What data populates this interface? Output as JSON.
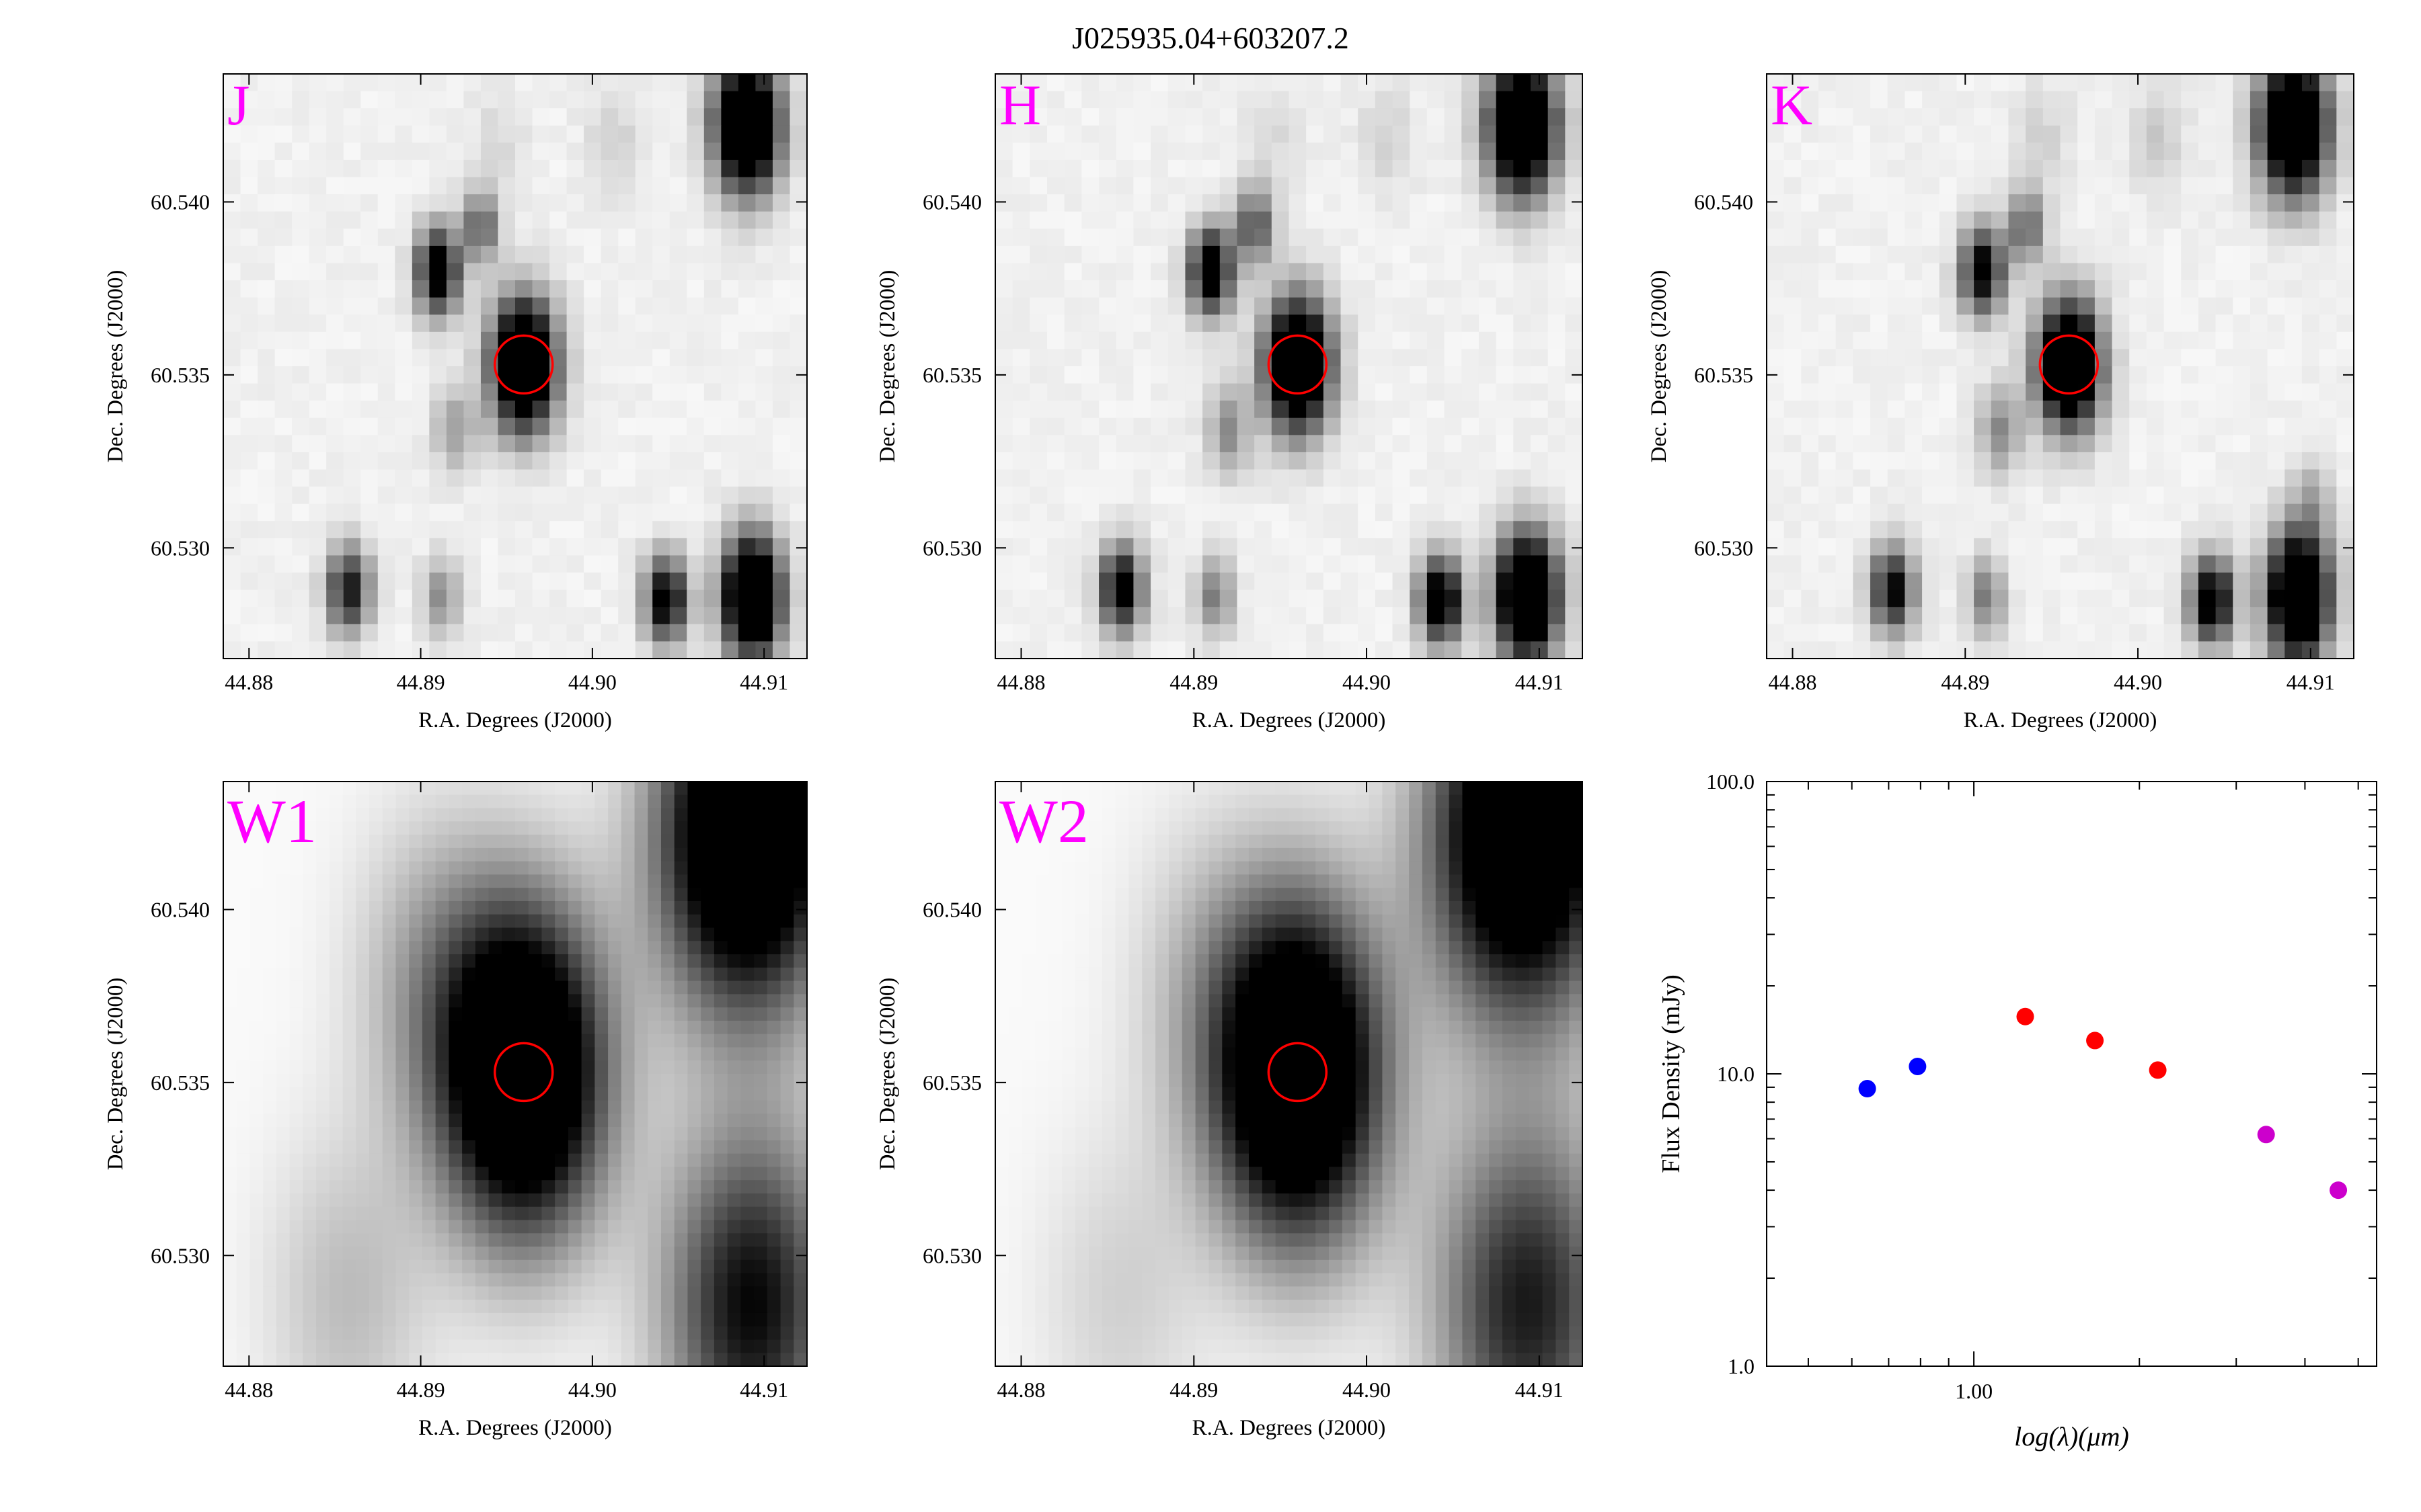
{
  "title": "J025935.04+603207.2",
  "colors": {
    "band_label": "#ff00ff",
    "aperture": "#ff0000",
    "sed_blue": "#0000ff",
    "sed_red": "#ff0000",
    "sed_magenta": "#cc00cc"
  },
  "chart_data": [
    {
      "type": "heatmap",
      "band": "J",
      "xlabel": "R.A. Degrees (J2000)",
      "ylabel": "Dec. Degrees (J2000)",
      "xlim": [
        44.8785,
        44.9125
      ],
      "ylim": [
        60.5268,
        60.5437
      ],
      "xticks": [
        "44.88",
        "44.89",
        "44.90",
        "44.91"
      ],
      "yticks": [
        "60.530",
        "60.535",
        "60.540"
      ],
      "target": {
        "ra": 44.896,
        "dec": 60.5353
      },
      "sources": [
        {
          "ra": 44.909,
          "dec": 60.5422,
          "level": 1.0,
          "size": 1.2
        },
        {
          "ra": 44.896,
          "dec": 60.5353,
          "level": 1.0,
          "size": 1.2
        },
        {
          "ra": 44.891,
          "dec": 60.538,
          "level": 0.7,
          "size": 0.8
        },
        {
          "ra": 44.8935,
          "dec": 60.5393,
          "level": 0.35,
          "size": 0.7
        },
        {
          "ra": 44.892,
          "dec": 60.5334,
          "level": 0.2,
          "size": 0.8
        },
        {
          "ra": 44.8858,
          "dec": 60.5288,
          "level": 0.55,
          "size": 0.8
        },
        {
          "ra": 44.8912,
          "dec": 60.5286,
          "level": 0.25,
          "size": 0.7
        },
        {
          "ra": 44.9043,
          "dec": 60.5285,
          "level": 0.65,
          "size": 0.8
        },
        {
          "ra": 44.9093,
          "dec": 60.5286,
          "level": 1.0,
          "size": 1.1
        },
        {
          "ra": 44.9012,
          "dec": 60.5418,
          "level": 0.08,
          "size": 1.0
        },
        {
          "ra": 44.8945,
          "dec": 60.5418,
          "level": 0.06,
          "size": 1.0
        }
      ]
    },
    {
      "type": "heatmap",
      "band": "H",
      "xlabel": "R.A. Degrees (J2000)",
      "ylabel": "Dec. Degrees (J2000)",
      "xlim": [
        44.8785,
        44.9125
      ],
      "ylim": [
        60.5268,
        60.5437
      ],
      "xticks": [
        "44.88",
        "44.89",
        "44.90",
        "44.91"
      ],
      "yticks": [
        "60.530",
        "60.535",
        "60.540"
      ],
      "target": {
        "ra": 44.896,
        "dec": 60.5353
      },
      "sources": [
        {
          "ra": 44.909,
          "dec": 60.5422,
          "level": 1.0,
          "size": 1.25
        },
        {
          "ra": 44.896,
          "dec": 60.5353,
          "level": 1.0,
          "size": 1.2
        },
        {
          "ra": 44.891,
          "dec": 60.538,
          "level": 0.7,
          "size": 0.8
        },
        {
          "ra": 44.8935,
          "dec": 60.5393,
          "level": 0.4,
          "size": 0.7
        },
        {
          "ra": 44.892,
          "dec": 60.5334,
          "level": 0.25,
          "size": 0.8
        },
        {
          "ra": 44.8858,
          "dec": 60.5288,
          "level": 0.65,
          "size": 0.8
        },
        {
          "ra": 44.8912,
          "dec": 60.5286,
          "level": 0.3,
          "size": 0.7
        },
        {
          "ra": 44.9043,
          "dec": 60.5285,
          "level": 0.75,
          "size": 0.8
        },
        {
          "ra": 44.9093,
          "dec": 60.5286,
          "level": 1.0,
          "size": 1.15
        },
        {
          "ra": 44.9012,
          "dec": 60.5418,
          "level": 0.08,
          "size": 1.0
        },
        {
          "ra": 44.8945,
          "dec": 60.5418,
          "level": 0.06,
          "size": 1.0
        }
      ]
    },
    {
      "type": "heatmap",
      "band": "K",
      "xlabel": "R.A. Degrees (J2000)",
      "ylabel": "Dec. Degrees (J2000)",
      "xlim": [
        44.8785,
        44.9125
      ],
      "ylim": [
        60.5268,
        60.5437
      ],
      "xticks": [
        "44.88",
        "44.89",
        "44.90",
        "44.91"
      ],
      "yticks": [
        "60.530",
        "60.535",
        "60.540"
      ],
      "target": {
        "ra": 44.896,
        "dec": 60.5353
      },
      "sources": [
        {
          "ra": 44.909,
          "dec": 60.5422,
          "level": 1.0,
          "size": 1.25
        },
        {
          "ra": 44.896,
          "dec": 60.5353,
          "level": 1.0,
          "size": 1.15
        },
        {
          "ra": 44.891,
          "dec": 60.538,
          "level": 0.65,
          "size": 0.8
        },
        {
          "ra": 44.8935,
          "dec": 60.5393,
          "level": 0.35,
          "size": 0.7
        },
        {
          "ra": 44.892,
          "dec": 60.5334,
          "level": 0.25,
          "size": 0.8
        },
        {
          "ra": 44.8858,
          "dec": 60.5288,
          "level": 0.6,
          "size": 0.8
        },
        {
          "ra": 44.8912,
          "dec": 60.5286,
          "level": 0.3,
          "size": 0.7
        },
        {
          "ra": 44.9043,
          "dec": 60.5285,
          "level": 0.7,
          "size": 0.8
        },
        {
          "ra": 44.9093,
          "dec": 60.5286,
          "level": 1.0,
          "size": 1.15
        },
        {
          "ra": 44.9012,
          "dec": 60.5418,
          "level": 0.1,
          "size": 1.0
        },
        {
          "ra": 44.8945,
          "dec": 60.5418,
          "level": 0.08,
          "size": 1.0
        },
        {
          "ra": 44.91,
          "dec": 60.5314,
          "level": 0.15,
          "size": 0.8
        }
      ]
    },
    {
      "type": "heatmap",
      "band": "W1",
      "xlabel": "R.A. Degrees (J2000)",
      "ylabel": "Dec. Degrees (J2000)",
      "xlim": [
        44.8785,
        44.9125
      ],
      "ylim": [
        60.5268,
        60.5437
      ],
      "xticks": [
        "44.88",
        "44.89",
        "44.90",
        "44.91"
      ],
      "yticks": [
        "60.530",
        "60.535",
        "60.540"
      ],
      "target": {
        "ra": 44.896,
        "dec": 60.5353
      },
      "sources": [
        {
          "ra": 44.909,
          "dec": 60.5422,
          "level": 1.0,
          "size": 3.2
        },
        {
          "ra": 44.896,
          "dec": 60.5353,
          "level": 1.0,
          "size": 3.0
        },
        {
          "ra": 44.891,
          "dec": 60.538,
          "level": 0.2,
          "size": 3.0
        },
        {
          "ra": 44.8858,
          "dec": 60.5288,
          "level": 0.15,
          "size": 3.0
        },
        {
          "ra": 44.9093,
          "dec": 60.5286,
          "level": 0.6,
          "size": 3.2
        }
      ]
    },
    {
      "type": "heatmap",
      "band": "W2",
      "xlabel": "R.A. Degrees (J2000)",
      "ylabel": "Dec. Degrees (J2000)",
      "xlim": [
        44.8785,
        44.9125
      ],
      "ylim": [
        60.5268,
        60.5437
      ],
      "xticks": [
        "44.88",
        "44.89",
        "44.90",
        "44.91"
      ],
      "yticks": [
        "60.530",
        "60.535",
        "60.540"
      ],
      "target": {
        "ra": 44.896,
        "dec": 60.5353
      },
      "sources": [
        {
          "ra": 44.909,
          "dec": 60.5422,
          "level": 0.95,
          "size": 3.3
        },
        {
          "ra": 44.896,
          "dec": 60.5353,
          "level": 1.0,
          "size": 3.1
        },
        {
          "ra": 44.891,
          "dec": 60.538,
          "level": 0.12,
          "size": 3.0
        },
        {
          "ra": 44.8858,
          "dec": 60.5288,
          "level": 0.1,
          "size": 3.0
        },
        {
          "ra": 44.9093,
          "dec": 60.5286,
          "level": 0.55,
          "size": 3.3
        }
      ]
    },
    {
      "type": "scatter",
      "xlabel": "log(λ)(μm)",
      "ylabel": "Flux Density (mJy)",
      "xscale": "log",
      "yscale": "log",
      "xlim": [
        0.42,
        5.4
      ],
      "ylim": [
        1.0,
        100.0
      ],
      "xticks": [
        "1.00"
      ],
      "yticks": [
        "1.0",
        "10.0",
        "100.0"
      ],
      "series": [
        {
          "color": "#0000ff",
          "x": [
            0.64,
            0.79
          ],
          "y": [
            8.9,
            10.6
          ]
        },
        {
          "color": "#ff0000",
          "x": [
            1.24,
            1.66,
            2.16
          ],
          "y": [
            15.7,
            13.0,
            10.3
          ]
        },
        {
          "color": "#cc00cc",
          "x": [
            3.4,
            4.6
          ],
          "y": [
            6.2,
            4.0
          ]
        }
      ]
    }
  ]
}
